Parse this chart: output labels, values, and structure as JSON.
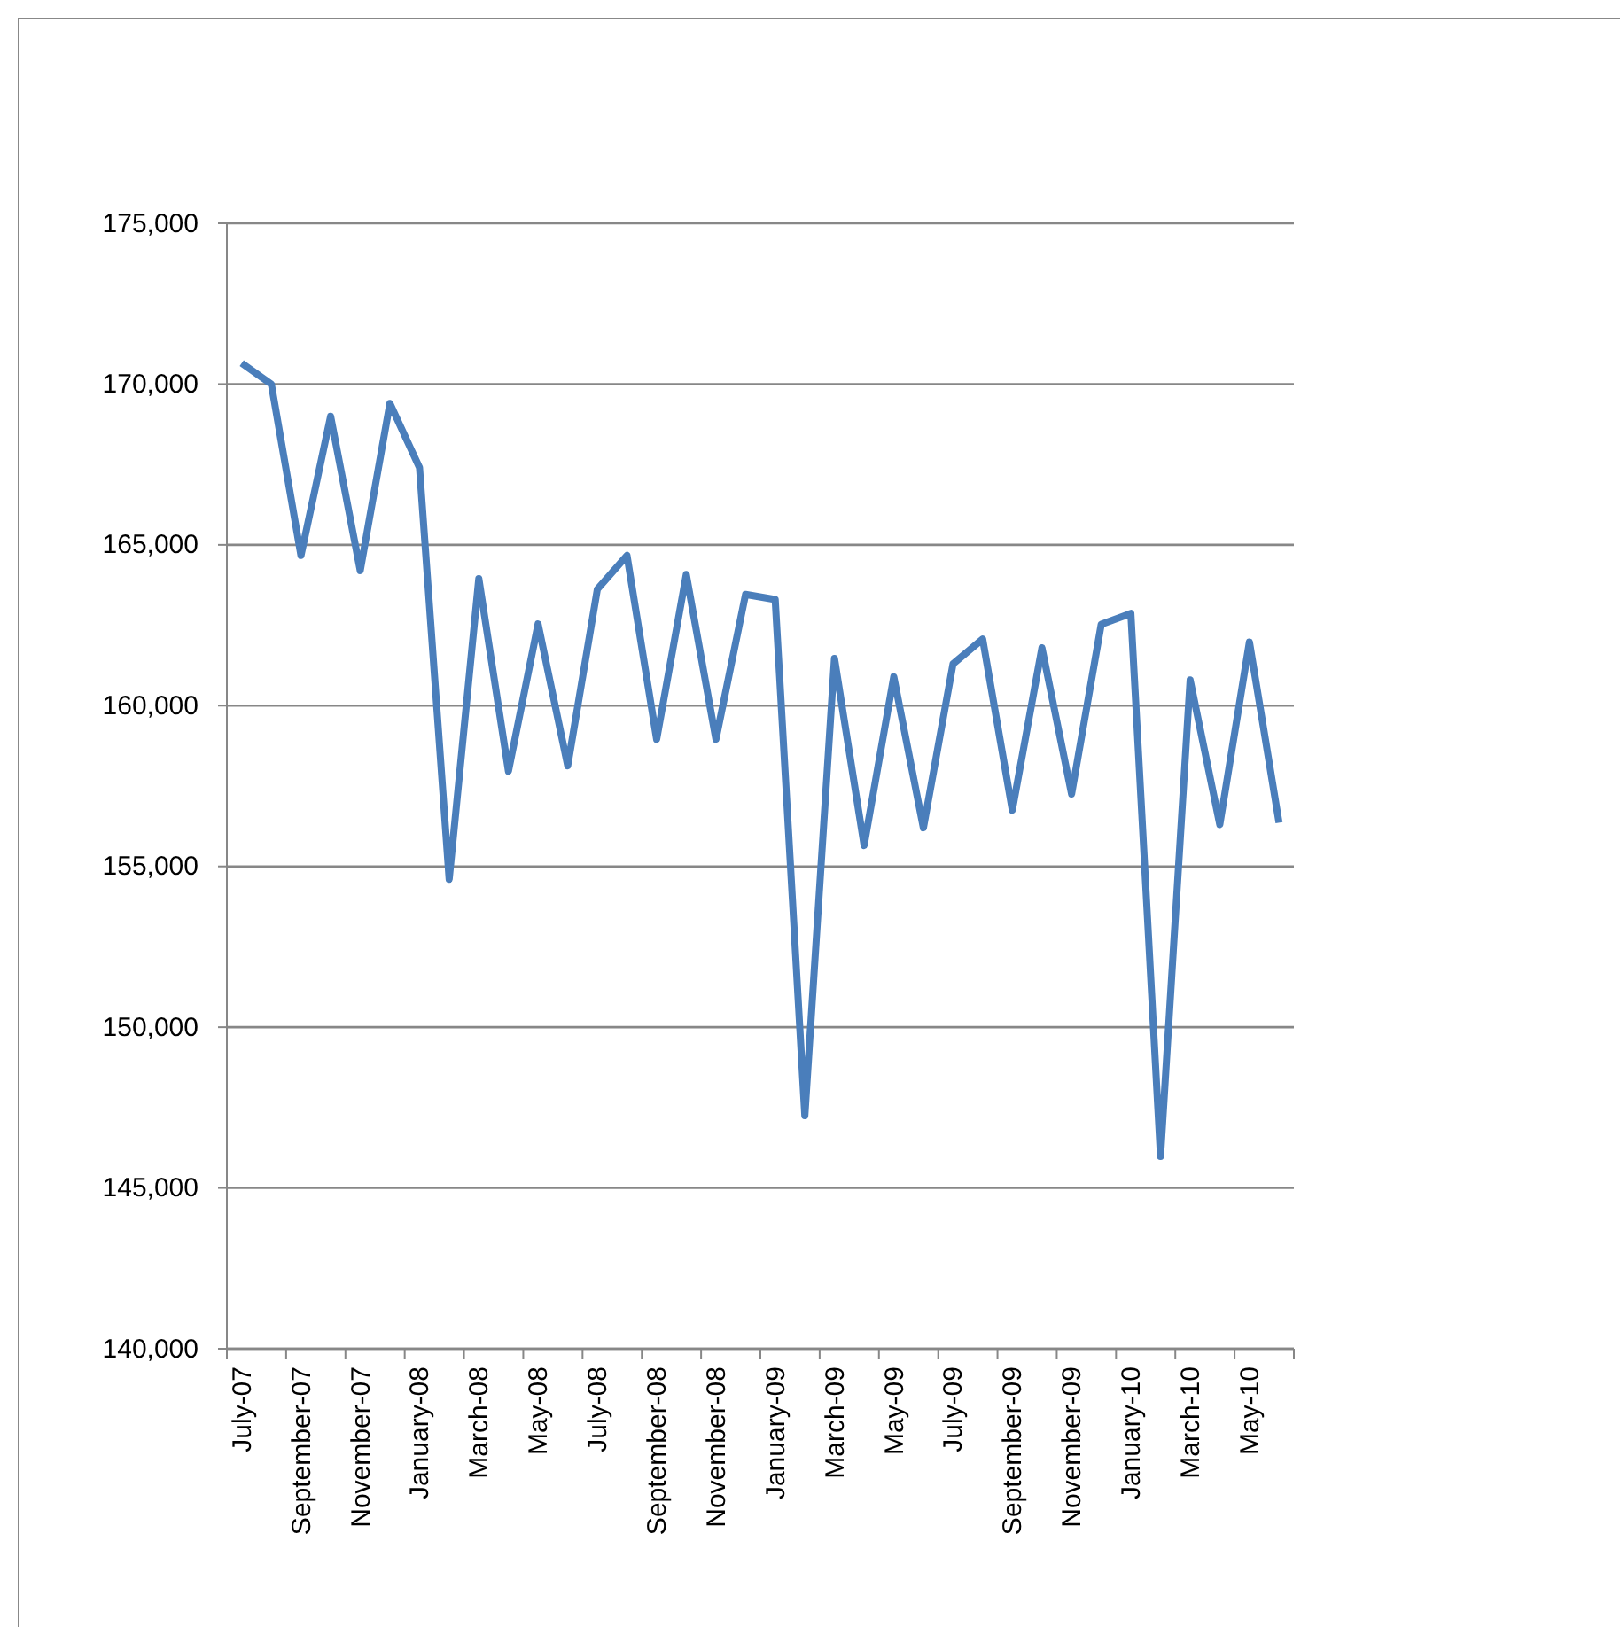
{
  "chart_data": {
    "type": "line",
    "categories": [
      "July-07",
      null,
      "September-07",
      null,
      "November-07",
      null,
      "January-08",
      null,
      "March-08",
      null,
      "May-08",
      null,
      "July-08",
      null,
      "September-08",
      null,
      "November-08",
      null,
      "January-09",
      null,
      "March-09",
      null,
      "May-09",
      null,
      "July-09",
      null,
      "September-09",
      null,
      "November-09",
      null,
      "January-10",
      null,
      "March-10",
      null,
      "May-10",
      null
    ],
    "series": [
      {
        "color": "#4a7ebb",
        "values": [
          170650,
          170000,
          164670,
          169000,
          164200,
          169400,
          167400,
          154600,
          163950,
          157960,
          162540,
          158130,
          163620,
          164670,
          158950,
          164080,
          158950,
          163460,
          163300,
          147250,
          161470,
          155650,
          160900,
          156200,
          161300,
          162070,
          156750,
          161800,
          157250,
          162530,
          162870,
          145980,
          160800,
          156300,
          161980,
          156360
        ]
      }
    ],
    "ylim": [
      140000,
      175000
    ],
    "yticks": [
      {
        "value": 140000,
        "label": "140,000"
      },
      {
        "value": 145000,
        "label": "145,000"
      },
      {
        "value": 150000,
        "label": "150,000"
      },
      {
        "value": 155000,
        "label": "155,000"
      },
      {
        "value": 160000,
        "label": "160,000"
      },
      {
        "value": 165000,
        "label": "165,000"
      },
      {
        "value": 170000,
        "label": "170,000"
      },
      {
        "value": 175000,
        "label": "175,000"
      }
    ],
    "grid": "y",
    "marker": "none",
    "line_style": "solid"
  }
}
